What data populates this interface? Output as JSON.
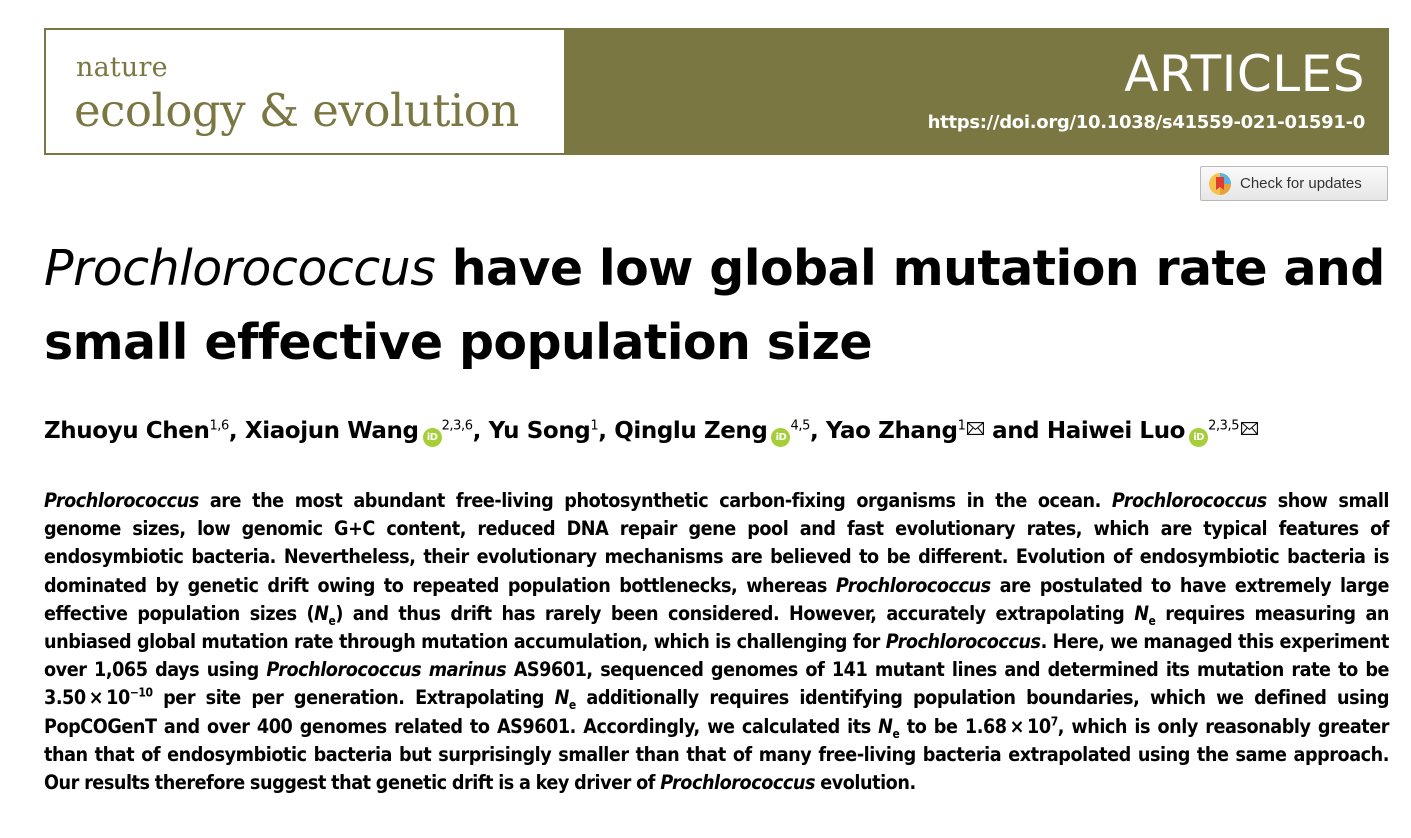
{
  "journal": {
    "name_small": "nature",
    "name_big": "ecology & evolution",
    "section": "ARTICLES",
    "doi": "https://doi.org/10.1038/s41559-021-01591-0",
    "brand_color": "#7b7743"
  },
  "updates_button": {
    "label": "Check for updates",
    "icon": "check-for-updates-icon"
  },
  "title": {
    "italic": "Prochlorococcus",
    "rest": " have low global mutation rate and small effective population size"
  },
  "authors": [
    {
      "name": "Zhuoyu Chen",
      "affil": "1,6",
      "orcid": false,
      "corresponding": false
    },
    {
      "name": "Xiaojun Wang",
      "affil": "2,3,6",
      "orcid": true,
      "corresponding": false
    },
    {
      "name": "Yu Song",
      "affil": "1",
      "orcid": false,
      "corresponding": false
    },
    {
      "name": "Qinglu Zeng",
      "affil": "4,5",
      "orcid": true,
      "corresponding": false
    },
    {
      "name": "Yao Zhang",
      "affil": "1",
      "orcid": false,
      "corresponding": true
    },
    {
      "name": "Haiwei Luo",
      "affil": "2,3,5",
      "orcid": true,
      "corresponding": true
    }
  ],
  "author_separators": [
    ", ",
    ", ",
    ", ",
    ", ",
    " and "
  ],
  "orcid_label": "iD",
  "abstract": [
    {
      "t": "Prochlorococcus",
      "i": true
    },
    {
      "t": " are the most abundant free-living photosynthetic carbon-fixing organisms in the ocean. "
    },
    {
      "t": "Prochlorococcus",
      "i": true
    },
    {
      "t": " show small genome sizes, low genomic G+C content, reduced DNA repair gene pool and fast evolutionary rates, which are typical features of endosymbiotic bacteria. Nevertheless, their evolutionary mechanisms are believed to be different. Evolution of endosymbiotic bacteria is dominated by genetic drift owing to repeated population bottlenecks, whereas "
    },
    {
      "t": "Prochlorococcus",
      "i": true
    },
    {
      "t": " are postulated to have extremely large effective population sizes ("
    },
    {
      "t": "N",
      "i": true
    },
    {
      "t": "e",
      "sub": true
    },
    {
      "t": ") and thus drift has rarely been considered. However, accu­rately extrapolating "
    },
    {
      "t": "N",
      "i": true
    },
    {
      "t": "e",
      "sub": true
    },
    {
      "t": " requires measuring an unbiased global mutation rate through mutation accumulation, which is challeng­ing for "
    },
    {
      "t": "Prochlorococcus",
      "i": true
    },
    {
      "t": ". Here, we managed this experiment over 1,065 days using "
    },
    {
      "t": "Prochlorococcus marinus",
      "i": true
    },
    {
      "t": " AS9601, sequenced genomes of 141 mutant lines and determined its mutation rate to be 3.50 × 10"
    },
    {
      "t": "−10",
      "sup": true
    },
    {
      "t": " per site per generation. Extrapolating "
    },
    {
      "t": "N",
      "i": true
    },
    {
      "t": "e",
      "sub": true
    },
    {
      "t": " addi­tionally requires identifying population boundaries, which we defined using PopCOGenT and over 400 genomes related to AS9601. Accordingly, we calculated its "
    },
    {
      "t": "N",
      "i": true
    },
    {
      "t": "e",
      "sub": true
    },
    {
      "t": " to be 1.68 × 10"
    },
    {
      "t": "7",
      "sup": true
    },
    {
      "t": ", which is only reasonably greater than that of endosymbiotic bacteria but surprisingly smaller than that of many free-living bacteria extrapolated using the same approach. Our results therefore suggest that genetic drift is a key driver of "
    },
    {
      "t": "Prochlorococcus",
      "i": true
    },
    {
      "t": " evolution."
    }
  ]
}
